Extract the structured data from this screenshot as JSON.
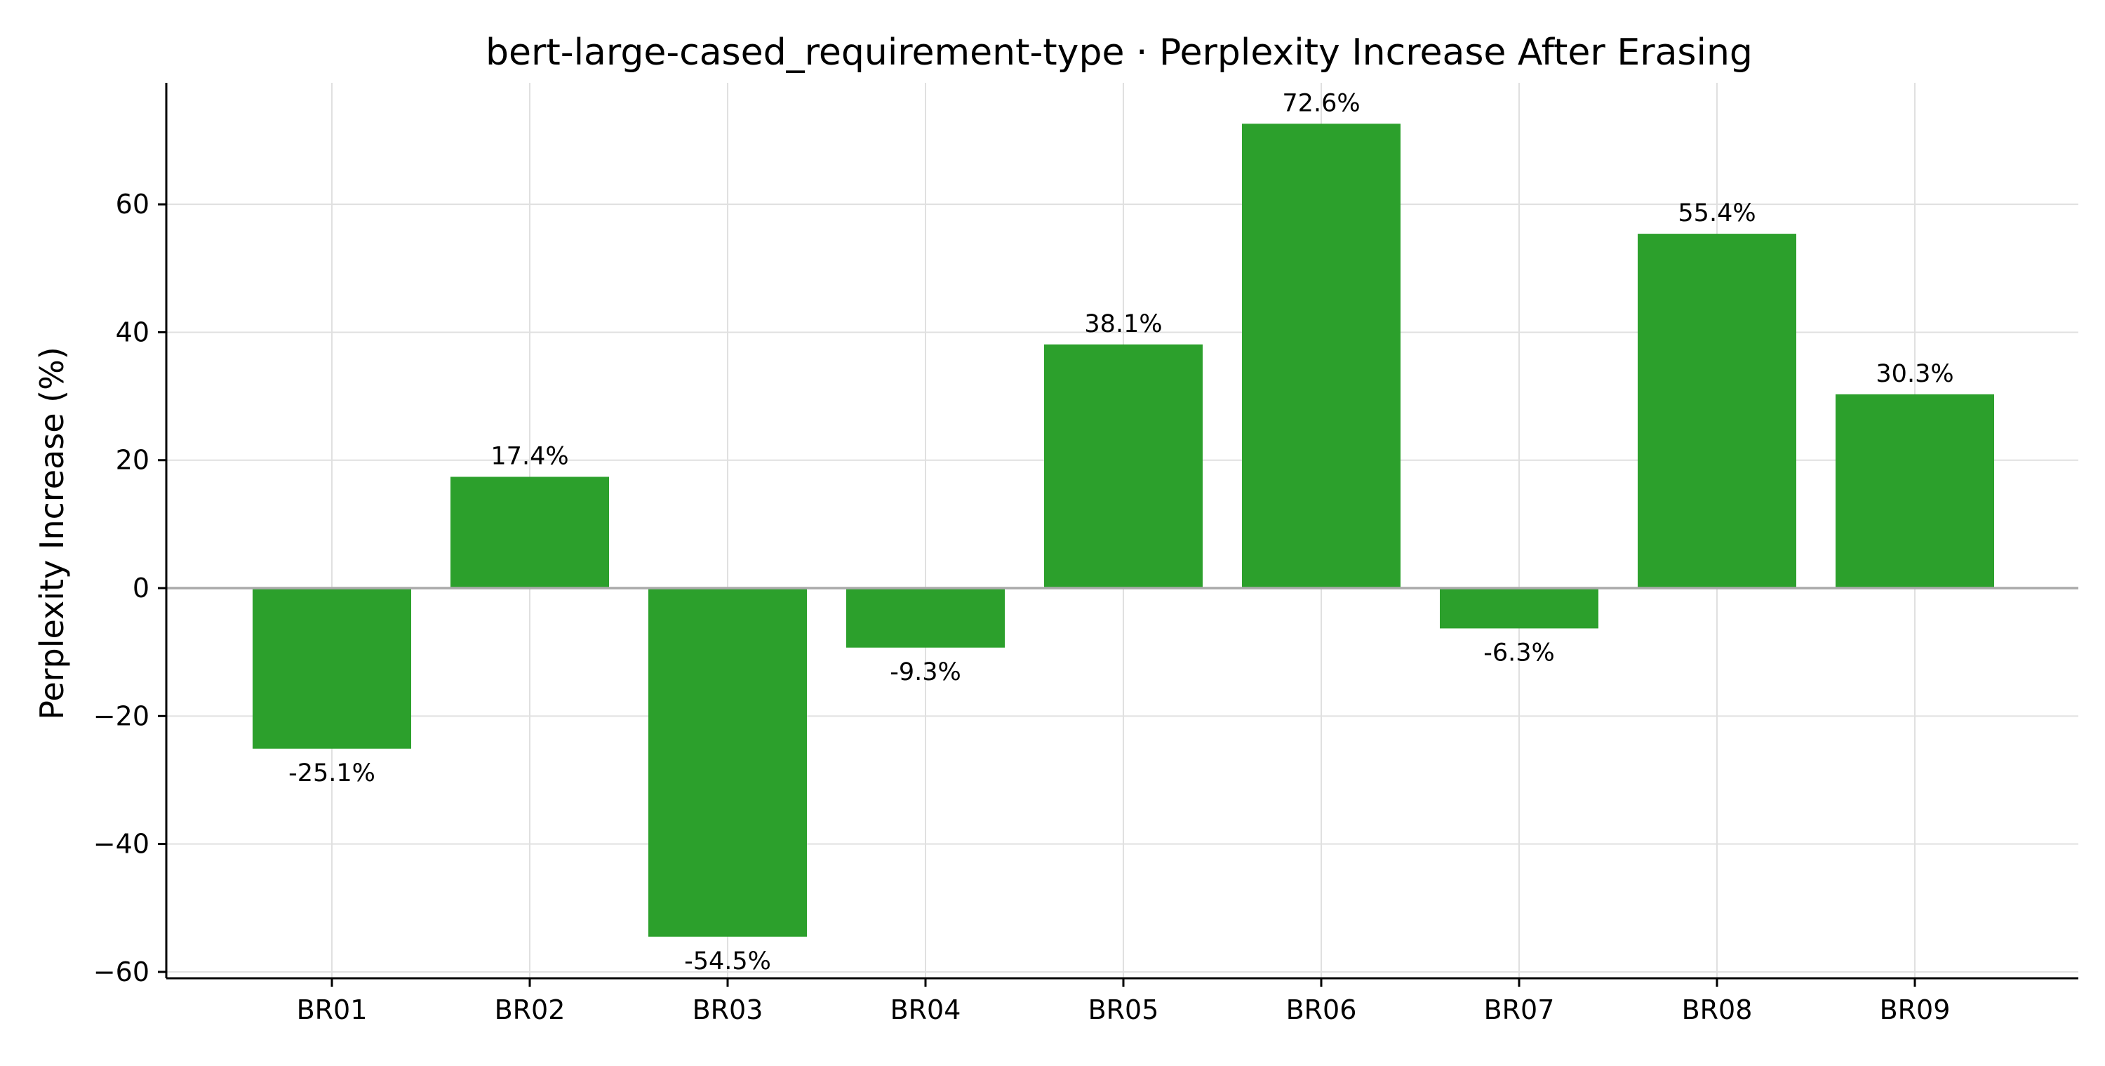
{
  "chart_data": {
    "type": "bar",
    "title": "bert-large-cased_requirement-type · Perplexity Increase After Erasing",
    "xlabel": "",
    "ylabel": "Perplexity Increase (%)",
    "categories": [
      "BR01",
      "BR02",
      "BR03",
      "BR04",
      "BR05",
      "BR06",
      "BR07",
      "BR08",
      "BR09"
    ],
    "values": [
      -25.1,
      17.4,
      -54.5,
      -9.3,
      38.1,
      72.6,
      -6.3,
      55.4,
      30.3
    ],
    "value_labels": [
      "-25.1%",
      "17.4%",
      "-54.5%",
      "-9.3%",
      "38.1%",
      "72.6%",
      "-6.3%",
      "55.4%",
      "30.3%"
    ],
    "ylim": [
      -61,
      79
    ],
    "yticks": [
      -60,
      -40,
      -20,
      0,
      20,
      40,
      60
    ],
    "ytick_labels": [
      "−60",
      "−40",
      "−20",
      "0",
      "20",
      "40",
      "60"
    ],
    "bar_color": "#2ca02c",
    "zero_line_color": "#aaaaaa",
    "grid": true,
    "legend": "none"
  }
}
